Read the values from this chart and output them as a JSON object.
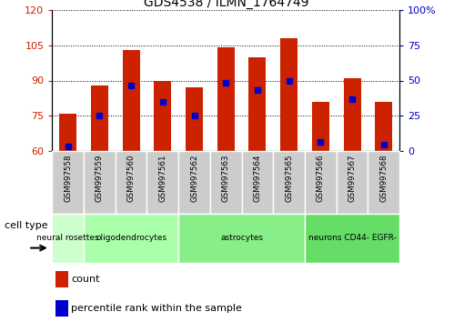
{
  "title": "GDS4538 / ILMN_1764749",
  "samples": [
    "GSM997558",
    "GSM997559",
    "GSM997560",
    "GSM997561",
    "GSM997562",
    "GSM997563",
    "GSM997564",
    "GSM997565",
    "GSM997566",
    "GSM997567",
    "GSM997568"
  ],
  "bar_tops": [
    76,
    88,
    103,
    90,
    87,
    104,
    100,
    108,
    81,
    91,
    81
  ],
  "bar_base": 60,
  "percentile_values": [
    62,
    75,
    88,
    81,
    75,
    89,
    86,
    90,
    64,
    82,
    63
  ],
  "ylim_left": [
    60,
    120
  ],
  "ylim_right": [
    0,
    100
  ],
  "yticks_left": [
    60,
    75,
    90,
    105,
    120
  ],
  "yticks_right": [
    0,
    25,
    50,
    75,
    100
  ],
  "bar_color": "#CC2200",
  "marker_color": "#0000CC",
  "cell_type_groups": [
    {
      "label": "neural rosettes",
      "start": 0,
      "end": 1,
      "color": "#CCFFCC"
    },
    {
      "label": "oligodendrocytes",
      "start": 1,
      "end": 4,
      "color": "#AAFFAA"
    },
    {
      "label": "astrocytes",
      "start": 4,
      "end": 8,
      "color": "#88EE88"
    },
    {
      "label": "neurons CD44- EGFR-",
      "start": 8,
      "end": 11,
      "color": "#66DD66"
    }
  ],
  "legend_count_label": "count",
  "legend_pct_label": "percentile rank within the sample",
  "left_axis_color": "#CC2200",
  "right_axis_color": "#0000CC",
  "xticklabel_bg": "#CCCCCC",
  "cell_type_colors": [
    "#CCFFCC",
    "#AAFFAA",
    "#88EE88",
    "#66DD66"
  ]
}
